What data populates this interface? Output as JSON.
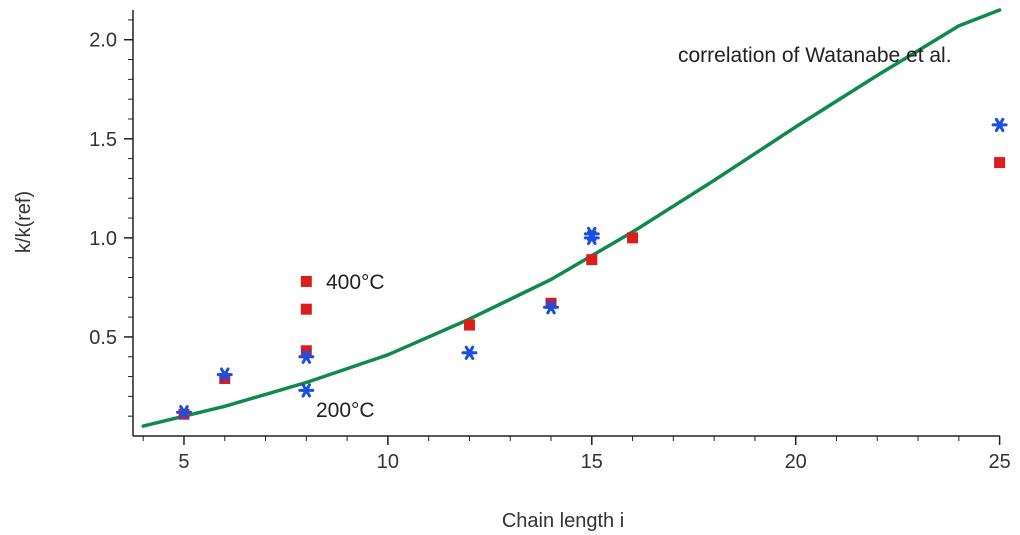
{
  "chart_data": {
    "type": "scatter",
    "xlabel": "Chain length i",
    "ylabel": "k/k(ref)",
    "xlim": [
      3.75,
      25.5
    ],
    "ylim": [
      0.0,
      2.15
    ],
    "x_ticks": [
      5,
      10,
      15,
      20,
      25
    ],
    "y_ticks": [
      0.5,
      1.0,
      1.5,
      2.0
    ],
    "x_tick_labels": [
      "5",
      "10",
      "15",
      "20",
      "25"
    ],
    "y_tick_labels": [
      "0.5",
      "1.0",
      "1.5",
      "2.0"
    ],
    "grid": false,
    "series": [
      {
        "marker": "square",
        "color": "#dd1c1c",
        "points": [
          {
            "x": 5,
            "y": 0.11
          },
          {
            "x": 6,
            "y": 0.29
          },
          {
            "x": 8,
            "y": 0.78
          },
          {
            "x": 8,
            "y": 0.64
          },
          {
            "x": 8,
            "y": 0.43
          },
          {
            "x": 12,
            "y": 0.56
          },
          {
            "x": 14,
            "y": 0.67
          },
          {
            "x": 15,
            "y": 0.89
          },
          {
            "x": 16,
            "y": 1.0
          },
          {
            "x": 25,
            "y": 1.38
          }
        ]
      },
      {
        "marker": "asterisk",
        "color": "#1a4fe0",
        "points": [
          {
            "x": 5,
            "y": 0.12
          },
          {
            "x": 6,
            "y": 0.31
          },
          {
            "x": 8,
            "y": 0.4
          },
          {
            "x": 8,
            "y": 0.23
          },
          {
            "x": 12,
            "y": 0.42
          },
          {
            "x": 14,
            "y": 0.65
          },
          {
            "x": 15,
            "y": 1.0
          },
          {
            "x": 15,
            "y": 1.02
          },
          {
            "x": 25,
            "y": 1.57
          }
        ]
      }
    ],
    "curve": {
      "color": "#0f8a4a",
      "points": [
        {
          "x": 4,
          "y": 0.05
        },
        {
          "x": 6,
          "y": 0.15
        },
        {
          "x": 8,
          "y": 0.27
        },
        {
          "x": 10,
          "y": 0.41
        },
        {
          "x": 12,
          "y": 0.59
        },
        {
          "x": 14,
          "y": 0.79
        },
        {
          "x": 16,
          "y": 1.03
        },
        {
          "x": 18,
          "y": 1.29
        },
        {
          "x": 20,
          "y": 1.56
        },
        {
          "x": 22,
          "y": 1.82
        },
        {
          "x": 24,
          "y": 2.07
        },
        {
          "x": 25,
          "y": 2.15
        }
      ]
    },
    "annotations": {
      "curve_label": "correlation of Watanabe et al.",
      "label_400": "400°C",
      "label_200": "200°C"
    }
  }
}
